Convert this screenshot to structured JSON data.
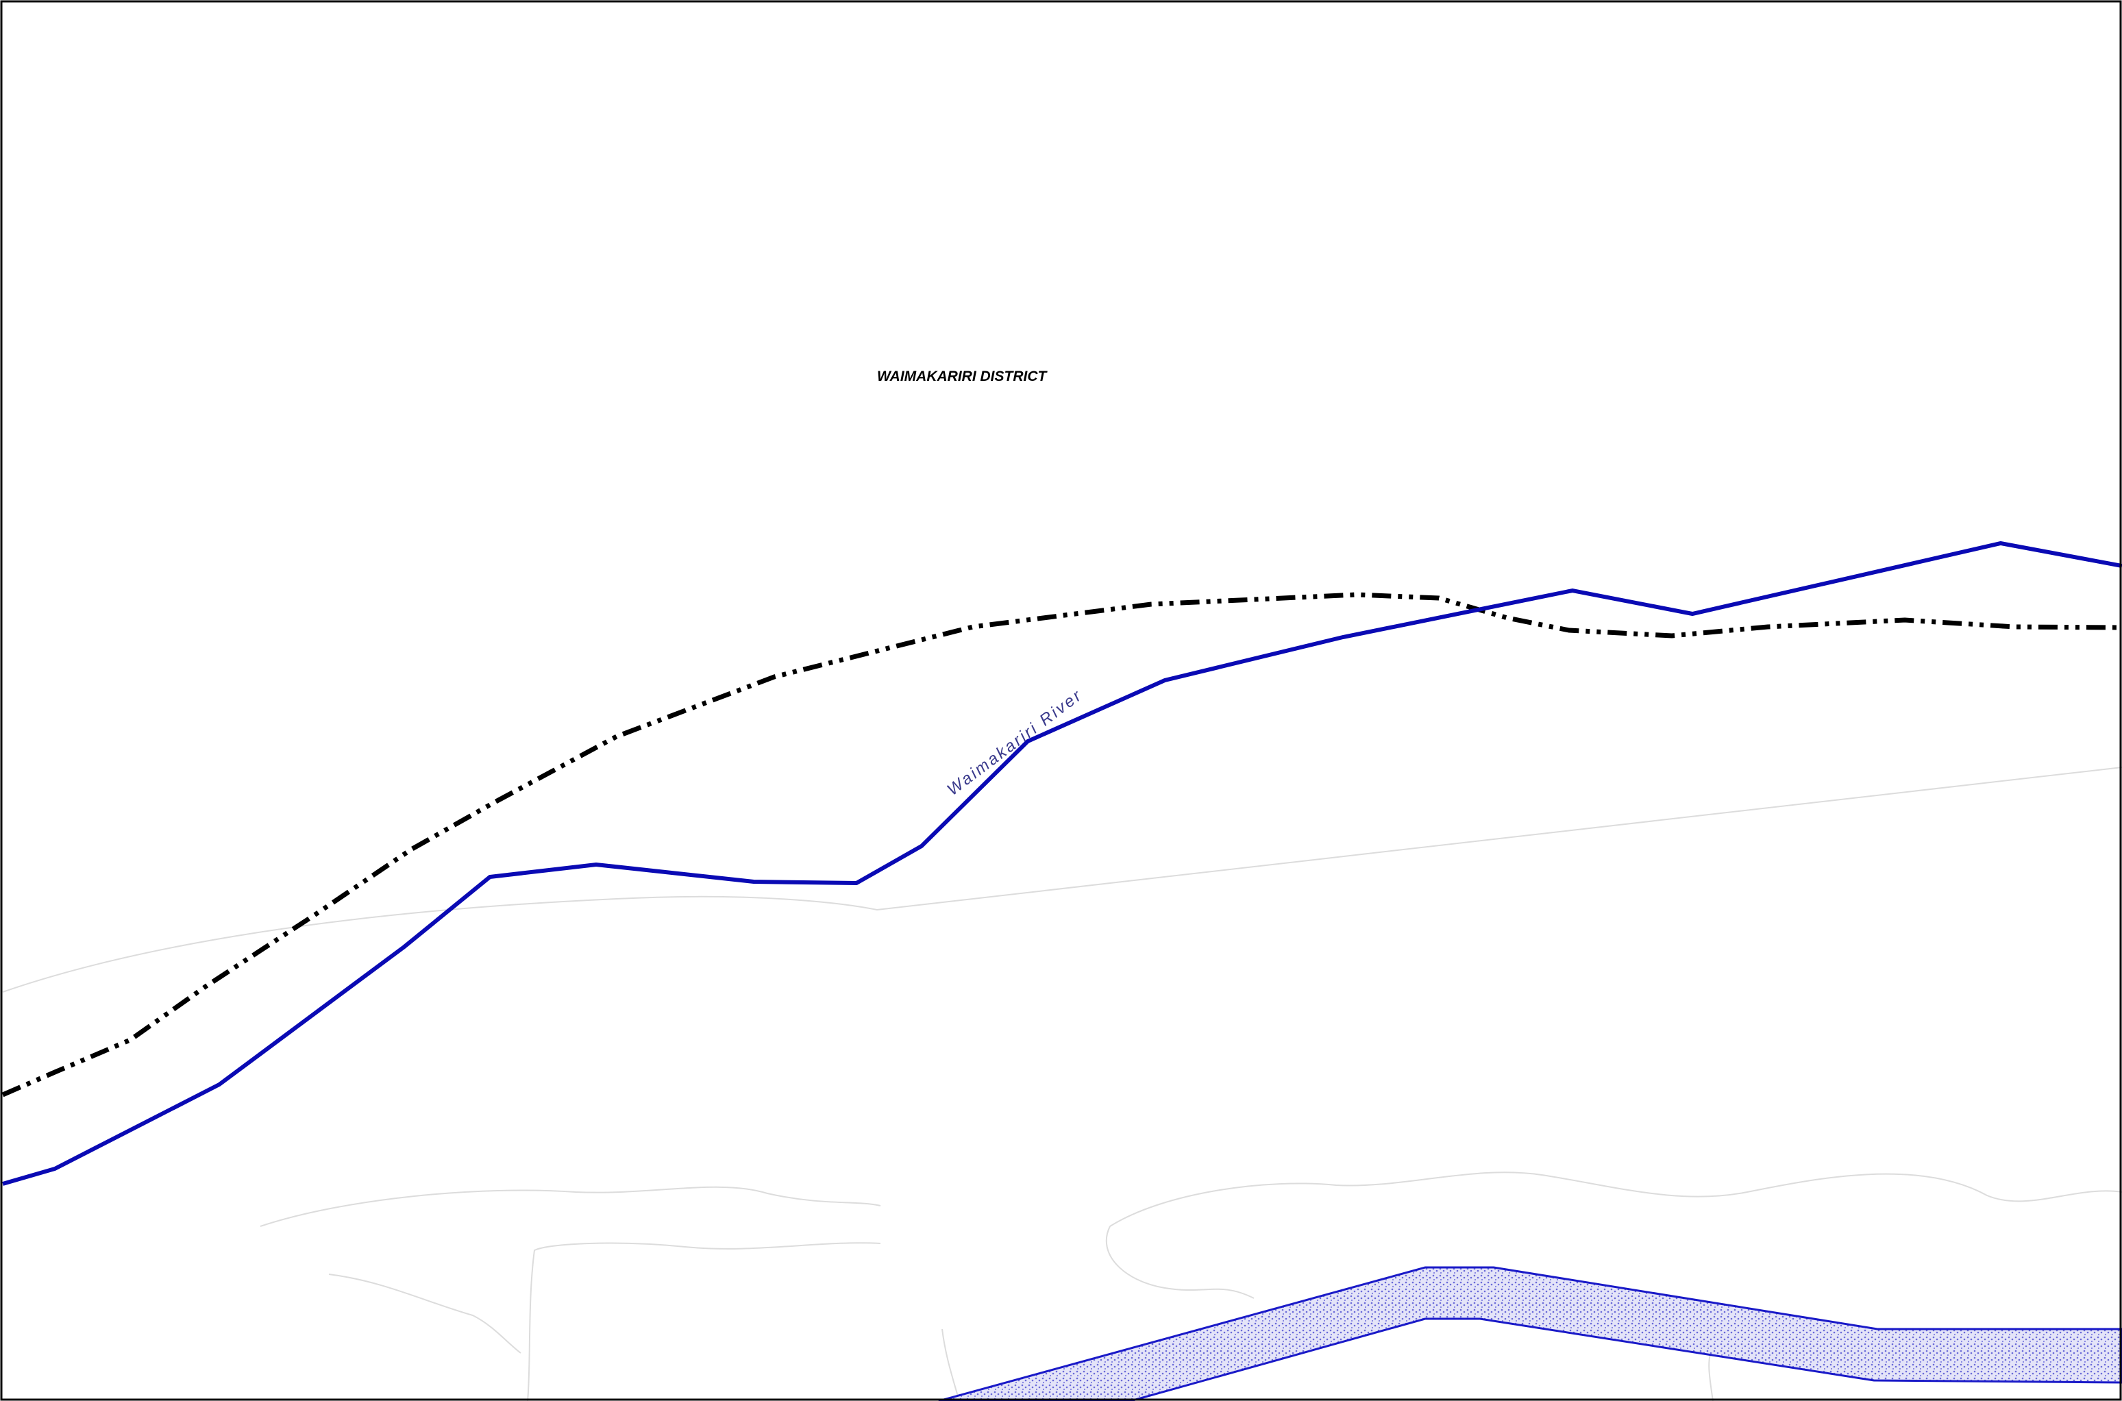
{
  "map": {
    "district_label": "WAIMAKARIRI DISTRICT",
    "river_label": "Waimakariri River"
  },
  "colors": {
    "river_line": "#0a0ab4",
    "river_label": "#3a3a8c",
    "district_boundary": "#000000",
    "stopbank_fill": "#c4c4f0",
    "stopbank_outline": "#1a1ac8",
    "faint_feature": "#dcdcdc",
    "frame": "#000000"
  }
}
